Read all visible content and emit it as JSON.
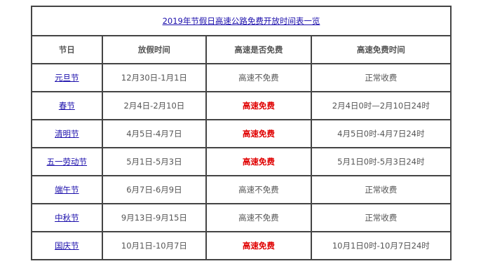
{
  "title": "2019年节假日高速公路免费开放时间表一览",
  "headers": [
    "节日",
    "放假时间",
    "高速是否免费",
    "高速免费时间"
  ],
  "colors": {
    "free": "#e00000",
    "link": "#1a0dab"
  },
  "rows": [
    {
      "holiday": "元旦节",
      "dates": "12月30日-1月1日",
      "free": "高速不免费",
      "is_free": false,
      "free_time": "正常收费"
    },
    {
      "holiday": "春节",
      "dates": "2月4日-2月10日",
      "free": "高速免费",
      "is_free": true,
      "free_time": "2月4日0时—2月10日24时"
    },
    {
      "holiday": "清明节",
      "dates": "4月5日-4月7日",
      "free": "高速免费",
      "is_free": true,
      "free_time": "4月5日0时-4月7日24时"
    },
    {
      "holiday": "五一劳动节",
      "dates": "5月1日-5月3日",
      "free": "高速免费",
      "is_free": true,
      "free_time": "5月1日0时-5月3日24时"
    },
    {
      "holiday": "端午节",
      "dates": "6月7日-6月9日",
      "free": "高速不免费",
      "is_free": false,
      "free_time": "正常收费"
    },
    {
      "holiday": "中秋节",
      "dates": "9月13日-9月15日",
      "free": "高速不免费",
      "is_free": false,
      "free_time": "正常收费"
    },
    {
      "holiday": "国庆节",
      "dates": "10月1日-10月7日",
      "free": "高速免费",
      "is_free": true,
      "free_time": "10月1日0时-10月7日24时"
    }
  ]
}
